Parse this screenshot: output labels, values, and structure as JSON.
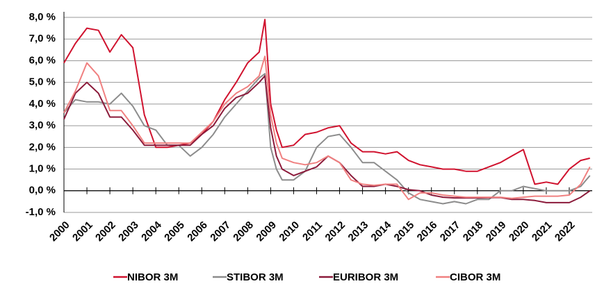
{
  "chart_data": {
    "type": "line",
    "x": [
      2000,
      2000.5,
      2001,
      2001.5,
      2002,
      2002.5,
      2003,
      2003.5,
      2004,
      2004.5,
      2005,
      2005.5,
      2006,
      2006.5,
      2007,
      2007.5,
      2008,
      2008.5,
      2008.75,
      2009,
      2009.25,
      2009.5,
      2010,
      2010.5,
      2011,
      2011.5,
      2012,
      2012.5,
      2013,
      2013.5,
      2014,
      2014.5,
      2015,
      2015.5,
      2016,
      2016.5,
      2017,
      2017.5,
      2018,
      2018.5,
      2019,
      2019.5,
      2020,
      2020.5,
      2021,
      2021.5,
      2022,
      2022.5,
      2022.9
    ],
    "series": [
      {
        "name": "NIBOR 3M",
        "color": "#d0122e",
        "values": [
          5.9,
          6.8,
          7.5,
          7.4,
          6.4,
          7.2,
          6.6,
          3.5,
          2.0,
          2.0,
          2.1,
          2.2,
          2.6,
          3.2,
          4.2,
          5.0,
          5.9,
          6.4,
          7.9,
          4.0,
          2.8,
          2.0,
          2.1,
          2.6,
          2.7,
          2.9,
          3.0,
          2.2,
          1.8,
          1.8,
          1.7,
          1.8,
          1.4,
          1.2,
          1.1,
          1.0,
          1.0,
          0.9,
          0.9,
          1.1,
          1.3,
          1.6,
          1.9,
          0.3,
          0.4,
          0.3,
          1.0,
          1.4,
          1.5
        ]
      },
      {
        "name": "STIBOR 3M",
        "color": "#8c8c8c",
        "values": [
          3.6,
          4.2,
          4.1,
          4.1,
          4.0,
          4.5,
          3.9,
          3.0,
          2.8,
          2.1,
          2.1,
          1.6,
          2.0,
          2.6,
          3.4,
          4.0,
          4.6,
          5.2,
          5.4,
          2.0,
          1.0,
          0.5,
          0.5,
          0.9,
          2.0,
          2.5,
          2.6,
          2.0,
          1.3,
          1.3,
          0.9,
          0.5,
          -0.1,
          -0.4,
          -0.5,
          -0.6,
          -0.5,
          -0.6,
          -0.4,
          -0.4,
          0.0,
          0.0,
          0.2,
          0.1,
          0.0,
          0.0,
          0.0,
          0.2,
          0.7
        ]
      },
      {
        "name": "EURIBOR 3M",
        "color": "#8b1a3a",
        "values": [
          3.3,
          4.5,
          5.0,
          4.5,
          3.4,
          3.4,
          2.8,
          2.1,
          2.1,
          2.1,
          2.1,
          2.1,
          2.6,
          3.0,
          3.8,
          4.3,
          4.5,
          5.0,
          5.3,
          2.9,
          1.6,
          1.0,
          0.7,
          0.9,
          1.1,
          1.6,
          1.3,
          0.7,
          0.2,
          0.2,
          0.3,
          0.2,
          0.05,
          0.0,
          -0.2,
          -0.3,
          -0.33,
          -0.33,
          -0.33,
          -0.32,
          -0.31,
          -0.4,
          -0.4,
          -0.45,
          -0.55,
          -0.55,
          -0.55,
          -0.3,
          0.0
        ]
      },
      {
        "name": "CIBOR 3M",
        "color": "#f08080",
        "values": [
          3.6,
          4.6,
          5.9,
          5.3,
          3.7,
          3.7,
          3.0,
          2.2,
          2.2,
          2.2,
          2.2,
          2.2,
          2.7,
          3.2,
          4.0,
          4.5,
          4.8,
          5.3,
          6.2,
          3.5,
          2.2,
          1.5,
          1.3,
          1.2,
          1.3,
          1.6,
          1.3,
          0.5,
          0.3,
          0.25,
          0.3,
          0.3,
          -0.4,
          -0.1,
          -0.1,
          -0.2,
          -0.25,
          -0.3,
          -0.3,
          -0.3,
          -0.3,
          -0.35,
          -0.3,
          -0.25,
          -0.25,
          -0.25,
          -0.2,
          0.3,
          1.1
        ]
      }
    ],
    "xlim": [
      2000,
      2023
    ],
    "xticks": [
      2000,
      2001,
      2002,
      2003,
      2004,
      2005,
      2006,
      2007,
      2008,
      2009,
      2010,
      2011,
      2012,
      2013,
      2014,
      2015,
      2016,
      2017,
      2018,
      2019,
      2020,
      2021,
      2022
    ],
    "ylim": [
      -1,
      8
    ],
    "yticks": [
      {
        "value": -1,
        "label": "-1,0 %"
      },
      {
        "value": 0,
        "label": "0,0 %"
      },
      {
        "value": 1,
        "label": "1,0 %"
      },
      {
        "value": 2,
        "label": "2,0 %"
      },
      {
        "value": 3,
        "label": "3,0 %"
      },
      {
        "value": 4,
        "label": "4,0 %"
      },
      {
        "value": 5,
        "label": "5,0 %"
      },
      {
        "value": 6,
        "label": "6,0 %"
      },
      {
        "value": 7,
        "label": "7,0 %"
      },
      {
        "value": 8,
        "label": "8,0 %"
      }
    ],
    "grid": true,
    "legend": "bottom"
  }
}
